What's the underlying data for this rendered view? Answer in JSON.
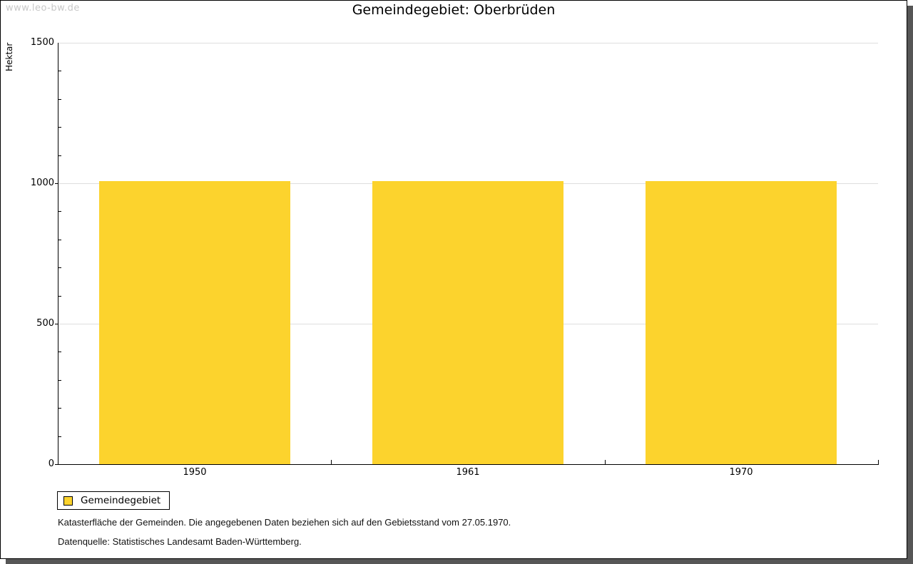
{
  "watermark": "www.leo-bw.de",
  "chart_data": {
    "type": "bar",
    "title": "Gemeindegebiet: Oberbrüden",
    "xlabel": "",
    "ylabel": "Hektar",
    "categories": [
      "1950",
      "1961",
      "1970"
    ],
    "series": [
      {
        "name": "Gemeindegebiet",
        "values": [
          1008,
          1008,
          1008
        ]
      }
    ],
    "ylim": [
      0,
      1500
    ],
    "yticks_major": [
      0,
      500,
      1000,
      1500
    ],
    "ytick_minor_step": 100,
    "grid": true,
    "legend_position": "bottom-left",
    "bar_color": "#FCD32D"
  },
  "legend": {
    "items": [
      {
        "label": "Gemeindegebiet",
        "color": "#FCD32D",
        "swatch": "yellow-square"
      }
    ]
  },
  "footer": {
    "line1": "Katasterfläche der Gemeinden. Die angegebenen Daten beziehen sich auf den Gebietsstand vom 27.05.1970.",
    "line2": "Datenquelle: Statistisches Landesamt Baden-Württemberg."
  },
  "colors": {
    "bar": "#FCD32D",
    "grid": "#DEDEDE",
    "axis": "#000000",
    "watermark": "#C8C8C8",
    "frame_shadow": "#565656"
  }
}
